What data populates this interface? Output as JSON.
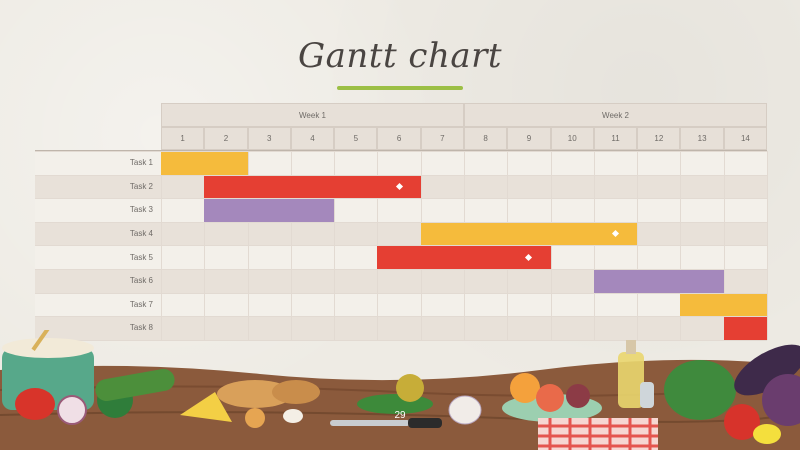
{
  "title": "Gantt chart",
  "colors": {
    "yellow": "#f5bb3c",
    "red": "#e53f33",
    "purple": "#a488bc",
    "underline": "#9cbf45"
  },
  "weeks": [
    {
      "label": "Week 1",
      "start": 1,
      "end": 7
    },
    {
      "label": "Week 2",
      "start": 8,
      "end": 14
    }
  ],
  "days": [
    "1",
    "2",
    "3",
    "4",
    "5",
    "6",
    "7",
    "8",
    "9",
    "10",
    "11",
    "12",
    "13",
    "14"
  ],
  "tasks": [
    {
      "label": "Task 1",
      "start": 1,
      "end": 2,
      "color": "yellow",
      "milestone": null
    },
    {
      "label": "Task 2",
      "start": 2,
      "end": 6,
      "color": "red",
      "milestone": 6
    },
    {
      "label": "Task 3",
      "start": 2,
      "end": 4,
      "color": "purple",
      "milestone": null
    },
    {
      "label": "Task 4",
      "start": 7,
      "end": 11,
      "color": "yellow",
      "milestone": 11
    },
    {
      "label": "Task 5",
      "start": 6,
      "end": 9,
      "color": "red",
      "milestone": 9
    },
    {
      "label": "Task 6",
      "start": 11,
      "end": 13,
      "color": "purple",
      "milestone": null
    },
    {
      "label": "Task 7",
      "start": 13,
      "end": 14,
      "color": "yellow",
      "milestone": null
    },
    {
      "label": "Task 8",
      "start": 14,
      "end": 14,
      "color": "red",
      "milestone": null
    }
  ],
  "page_number": "29"
}
